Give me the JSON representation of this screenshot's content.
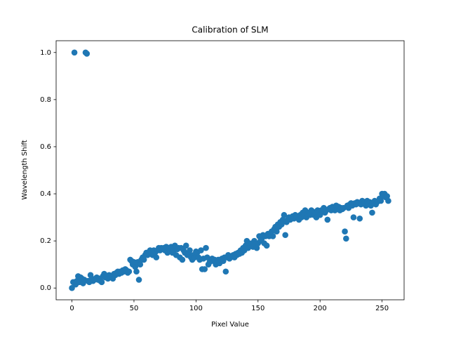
{
  "chart_data": {
    "type": "scatter",
    "title": "Calibration of SLM",
    "xlabel": "Pixel Value",
    "ylabel": "Wavelength Shift",
    "series": [
      {
        "color": "#1f77b4",
        "x": [
          0,
          1,
          2,
          3,
          4,
          5,
          6,
          7,
          8,
          9,
          10,
          11,
          12,
          13,
          14,
          15,
          16,
          17,
          18,
          19,
          20,
          21,
          22,
          23,
          24,
          25,
          26,
          27,
          28,
          29,
          30,
          31,
          32,
          33,
          34,
          35,
          36,
          37,
          38,
          39,
          40,
          41,
          42,
          43,
          44,
          45,
          46,
          47,
          48,
          49,
          50,
          51,
          52,
          53,
          54,
          55,
          56,
          57,
          58,
          59,
          60,
          61,
          62,
          63,
          64,
          65,
          66,
          67,
          68,
          69,
          70,
          71,
          72,
          73,
          74,
          75,
          76,
          77,
          78,
          79,
          80,
          81,
          82,
          83,
          84,
          85,
          86,
          87,
          88,
          89,
          90,
          91,
          92,
          93,
          94,
          95,
          96,
          97,
          98,
          99,
          100,
          101,
          102,
          103,
          104,
          105,
          106,
          107,
          108,
          109,
          110,
          111,
          112,
          113,
          114,
          115,
          116,
          117,
          118,
          119,
          120,
          121,
          122,
          123,
          124,
          125,
          126,
          127,
          128,
          129,
          130,
          131,
          132,
          133,
          134,
          135,
          136,
          137,
          138,
          139,
          140,
          141,
          142,
          143,
          144,
          145,
          146,
          147,
          148,
          149,
          150,
          151,
          152,
          153,
          154,
          155,
          156,
          157,
          158,
          159,
          160,
          161,
          162,
          163,
          164,
          165,
          166,
          167,
          168,
          169,
          170,
          171,
          172,
          173,
          174,
          175,
          176,
          177,
          178,
          179,
          180,
          181,
          182,
          183,
          184,
          185,
          186,
          187,
          188,
          189,
          190,
          191,
          192,
          193,
          194,
          195,
          196,
          197,
          198,
          199,
          200,
          201,
          202,
          203,
          204,
          205,
          206,
          207,
          208,
          209,
          210,
          211,
          212,
          213,
          214,
          215,
          216,
          217,
          218,
          219,
          220,
          221,
          222,
          223,
          224,
          225,
          226,
          227,
          228,
          229,
          230,
          231,
          232,
          233,
          234,
          235,
          236,
          237,
          238,
          239,
          240,
          241,
          242,
          243,
          244,
          245,
          246,
          247,
          248,
          249,
          250,
          251,
          252,
          253,
          254,
          255
        ],
        "values": [
          0.0,
          0.025,
          1.0,
          0.015,
          0.03,
          0.05,
          0.025,
          0.045,
          0.04,
          0.02,
          0.035,
          1.0,
          0.995,
          0.03,
          0.025,
          0.055,
          0.04,
          0.03,
          0.035,
          0.04,
          0.045,
          0.035,
          0.04,
          0.03,
          0.025,
          0.05,
          0.06,
          0.045,
          0.05,
          0.04,
          0.055,
          0.045,
          0.05,
          0.04,
          0.06,
          0.055,
          0.065,
          0.07,
          0.06,
          0.07,
          0.065,
          0.075,
          0.07,
          0.08,
          0.075,
          0.065,
          0.07,
          0.12,
          0.115,
          0.1,
          0.11,
          0.09,
          0.07,
          0.11,
          0.035,
          0.1,
          0.12,
          0.13,
          0.12,
          0.14,
          0.15,
          0.14,
          0.15,
          0.16,
          0.15,
          0.14,
          0.16,
          0.15,
          0.13,
          0.16,
          0.17,
          0.16,
          0.17,
          0.165,
          0.17,
          0.16,
          0.175,
          0.15,
          0.17,
          0.16,
          0.175,
          0.15,
          0.16,
          0.18,
          0.14,
          0.165,
          0.17,
          0.13,
          0.17,
          0.12,
          0.16,
          0.15,
          0.18,
          0.14,
          0.15,
          0.16,
          0.13,
          0.12,
          0.14,
          0.13,
          0.155,
          0.15,
          0.13,
          0.12,
          0.16,
          0.08,
          0.125,
          0.08,
          0.17,
          0.13,
          0.1,
          0.11,
          0.12,
          0.125,
          0.115,
          0.12,
          0.1,
          0.11,
          0.12,
          0.105,
          0.12,
          0.125,
          0.115,
          0.13,
          0.07,
          0.13,
          0.14,
          0.125,
          0.13,
          0.135,
          0.14,
          0.13,
          0.145,
          0.14,
          0.15,
          0.145,
          0.16,
          0.15,
          0.17,
          0.16,
          0.18,
          0.2,
          0.17,
          0.19,
          0.18,
          0.19,
          0.175,
          0.2,
          0.185,
          0.17,
          0.19,
          0.22,
          0.2,
          0.21,
          0.225,
          0.19,
          0.22,
          0.18,
          0.23,
          0.22,
          0.23,
          0.24,
          0.22,
          0.25,
          0.26,
          0.24,
          0.27,
          0.26,
          0.28,
          0.27,
          0.29,
          0.31,
          0.225,
          0.28,
          0.29,
          0.3,
          0.29,
          0.3,
          0.305,
          0.295,
          0.31,
          0.3,
          0.305,
          0.29,
          0.31,
          0.3,
          0.32,
          0.31,
          0.33,
          0.3,
          0.315,
          0.32,
          0.31,
          0.33,
          0.325,
          0.31,
          0.32,
          0.3,
          0.33,
          0.32,
          0.31,
          0.33,
          0.325,
          0.34,
          0.32,
          0.33,
          0.29,
          0.335,
          0.34,
          0.33,
          0.345,
          0.34,
          0.33,
          0.35,
          0.34,
          0.345,
          0.33,
          0.34,
          0.335,
          0.34,
          0.24,
          0.21,
          0.35,
          0.34,
          0.355,
          0.36,
          0.35,
          0.3,
          0.36,
          0.355,
          0.365,
          0.36,
          0.295,
          0.355,
          0.37,
          0.36,
          0.365,
          0.35,
          0.37,
          0.36,
          0.365,
          0.35,
          0.32,
          0.36,
          0.37,
          0.355,
          0.365,
          0.37,
          0.38,
          0.37,
          0.4,
          0.39,
          0.4,
          0.385,
          0.39,
          0.37
        ]
      }
    ],
    "xlim": [
      -12.75,
      267.75
    ],
    "xticks": [
      0,
      50,
      100,
      150,
      200,
      250
    ],
    "ylim": [
      -0.05,
      1.05
    ],
    "yticks": [
      {
        "value": 0,
        "label": "0.0"
      },
      0.2,
      0.4,
      0.6,
      0.8,
      {
        "value": 1,
        "label": "1.0"
      }
    ]
  }
}
